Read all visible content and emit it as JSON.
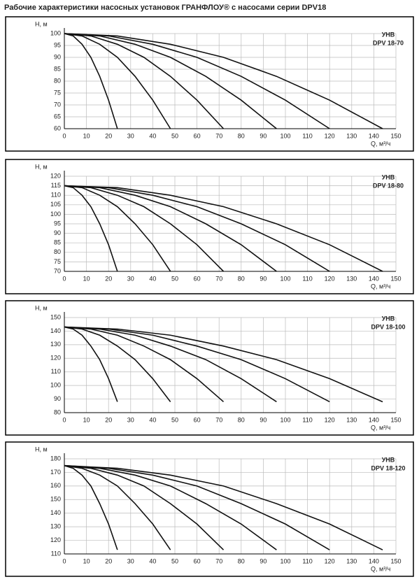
{
  "title": "Рабочие характеристики насосных установок  ГРАНФЛОУ® с насосами серии DPV18",
  "chart_data": [
    {
      "type": "line",
      "ylabel": "Н, м",
      "xlabel": "Q, м³/ч",
      "label": "УНВ",
      "model": "DPV 18-70",
      "xlim": [
        0,
        150
      ],
      "xticks": [
        0,
        10,
        20,
        30,
        40,
        50,
        60,
        70,
        80,
        90,
        100,
        110,
        120,
        130,
        140,
        150
      ],
      "ylim": [
        60,
        100
      ],
      "yticks": [
        60,
        65,
        70,
        75,
        80,
        85,
        90,
        95,
        100
      ],
      "grid": true,
      "series": [
        {
          "color": "#111",
          "x": [
            0,
            4,
            8,
            12,
            16,
            20,
            24
          ],
          "values": [
            100,
            99,
            95.5,
            90,
            82,
            72,
            60
          ]
        },
        {
          "color": "#111",
          "x": [
            0,
            8,
            16,
            24,
            32,
            40,
            48
          ],
          "values": [
            100,
            99,
            95.5,
            90,
            82,
            72,
            60
          ]
        },
        {
          "color": "#111",
          "x": [
            0,
            12,
            24,
            36,
            48,
            60,
            72
          ],
          "values": [
            100,
            99,
            95.5,
            90,
            82,
            72,
            60
          ]
        },
        {
          "color": "#111",
          "x": [
            0,
            16,
            32,
            48,
            64,
            80,
            96
          ],
          "values": [
            100,
            99,
            95.5,
            90,
            82,
            72,
            60
          ]
        },
        {
          "color": "#111",
          "x": [
            0,
            20,
            40,
            60,
            80,
            100,
            120
          ],
          "values": [
            100,
            99,
            95.5,
            90,
            82,
            72,
            60
          ]
        },
        {
          "color": "#111",
          "x": [
            0,
            24,
            48,
            72,
            96,
            120,
            144
          ],
          "values": [
            100,
            99,
            95.5,
            90,
            82,
            72,
            60
          ]
        }
      ]
    },
    {
      "type": "line",
      "ylabel": "Н, м",
      "xlabel": "Q, м³/ч",
      "label": "УНВ",
      "model": "DPV 18-80",
      "xlim": [
        0,
        150
      ],
      "xticks": [
        0,
        10,
        20,
        30,
        40,
        50,
        60,
        70,
        80,
        90,
        100,
        110,
        120,
        130,
        140,
        150
      ],
      "ylim": [
        70,
        120
      ],
      "yticks": [
        70,
        75,
        80,
        85,
        90,
        95,
        100,
        105,
        110,
        115,
        120
      ],
      "grid": true,
      "series": [
        {
          "color": "#111",
          "x": [
            0,
            4,
            8,
            12,
            16,
            20,
            24
          ],
          "values": [
            115,
            114,
            110,
            104,
            95,
            84,
            70
          ]
        },
        {
          "color": "#111",
          "x": [
            0,
            8,
            16,
            24,
            32,
            40,
            48
          ],
          "values": [
            115,
            114,
            110,
            104,
            95,
            84,
            70
          ]
        },
        {
          "color": "#111",
          "x": [
            0,
            12,
            24,
            36,
            48,
            60,
            72
          ],
          "values": [
            115,
            114,
            110,
            104,
            95,
            84,
            70
          ]
        },
        {
          "color": "#111",
          "x": [
            0,
            16,
            32,
            48,
            64,
            80,
            96
          ],
          "values": [
            115,
            114,
            110,
            104,
            95,
            84,
            70
          ]
        },
        {
          "color": "#111",
          "x": [
            0,
            20,
            40,
            60,
            80,
            100,
            120
          ],
          "values": [
            115,
            114,
            110,
            104,
            95,
            84,
            70
          ]
        },
        {
          "color": "#111",
          "x": [
            0,
            24,
            48,
            72,
            96,
            120,
            144
          ],
          "values": [
            115,
            114,
            110,
            104,
            95,
            84,
            70
          ]
        }
      ]
    },
    {
      "type": "line",
      "ylabel": "Н, м",
      "xlabel": "Q, м³/ч",
      "label": "УНВ",
      "model": "DPV 18-100",
      "xlim": [
        0,
        150
      ],
      "xticks": [
        0,
        10,
        20,
        30,
        40,
        50,
        60,
        70,
        80,
        90,
        100,
        110,
        120,
        130,
        140,
        150
      ],
      "ylim": [
        80,
        150
      ],
      "yticks": [
        80,
        90,
        100,
        110,
        120,
        130,
        140,
        150
      ],
      "grid": true,
      "series": [
        {
          "color": "#111",
          "x": [
            0,
            4,
            8,
            12,
            16,
            20,
            24
          ],
          "values": [
            143,
            141.5,
            137,
            129,
            119,
            105,
            88
          ]
        },
        {
          "color": "#111",
          "x": [
            0,
            8,
            16,
            24,
            32,
            40,
            48
          ],
          "values": [
            143,
            141.5,
            137,
            129,
            119,
            105,
            88
          ]
        },
        {
          "color": "#111",
          "x": [
            0,
            12,
            24,
            36,
            48,
            60,
            72
          ],
          "values": [
            143,
            141.5,
            137,
            129,
            119,
            105,
            88
          ]
        },
        {
          "color": "#111",
          "x": [
            0,
            16,
            32,
            48,
            64,
            80,
            96
          ],
          "values": [
            143,
            141.5,
            137,
            129,
            119,
            105,
            88
          ]
        },
        {
          "color": "#111",
          "x": [
            0,
            20,
            40,
            60,
            80,
            100,
            120
          ],
          "values": [
            143,
            141.5,
            137,
            129,
            119,
            105,
            88
          ]
        },
        {
          "color": "#111",
          "x": [
            0,
            24,
            48,
            72,
            96,
            120,
            144
          ],
          "values": [
            143,
            141.5,
            137,
            129,
            119,
            105,
            88
          ]
        }
      ]
    },
    {
      "type": "line",
      "ylabel": "Н, м",
      "xlabel": "Q, м³/ч",
      "label": "УНВ",
      "model": "DPV 18-120",
      "xlim": [
        0,
        150
      ],
      "xticks": [
        0,
        10,
        20,
        30,
        40,
        50,
        60,
        70,
        80,
        90,
        100,
        110,
        120,
        130,
        140,
        150
      ],
      "ylim": [
        110,
        180
      ],
      "yticks": [
        110,
        120,
        130,
        140,
        150,
        160,
        170,
        180
      ],
      "grid": true,
      "series": [
        {
          "color": "#111",
          "x": [
            0,
            4,
            8,
            12,
            16,
            20,
            24
          ],
          "values": [
            175,
            173,
            168,
            160,
            147,
            132,
            113
          ]
        },
        {
          "color": "#111",
          "x": [
            0,
            8,
            16,
            24,
            32,
            40,
            48
          ],
          "values": [
            175,
            173,
            168,
            160,
            147,
            132,
            113
          ]
        },
        {
          "color": "#111",
          "x": [
            0,
            12,
            24,
            36,
            48,
            60,
            72
          ],
          "values": [
            175,
            173,
            168,
            160,
            147,
            132,
            113
          ]
        },
        {
          "color": "#111",
          "x": [
            0,
            16,
            32,
            48,
            64,
            80,
            96
          ],
          "values": [
            175,
            173,
            168,
            160,
            147,
            132,
            113
          ]
        },
        {
          "color": "#111",
          "x": [
            0,
            20,
            40,
            60,
            80,
            100,
            120
          ],
          "values": [
            175,
            173,
            168,
            160,
            147,
            132,
            113
          ]
        },
        {
          "color": "#111",
          "x": [
            0,
            24,
            48,
            72,
            96,
            120,
            144
          ],
          "values": [
            175,
            173,
            168,
            160,
            147,
            132,
            113
          ]
        }
      ]
    }
  ]
}
